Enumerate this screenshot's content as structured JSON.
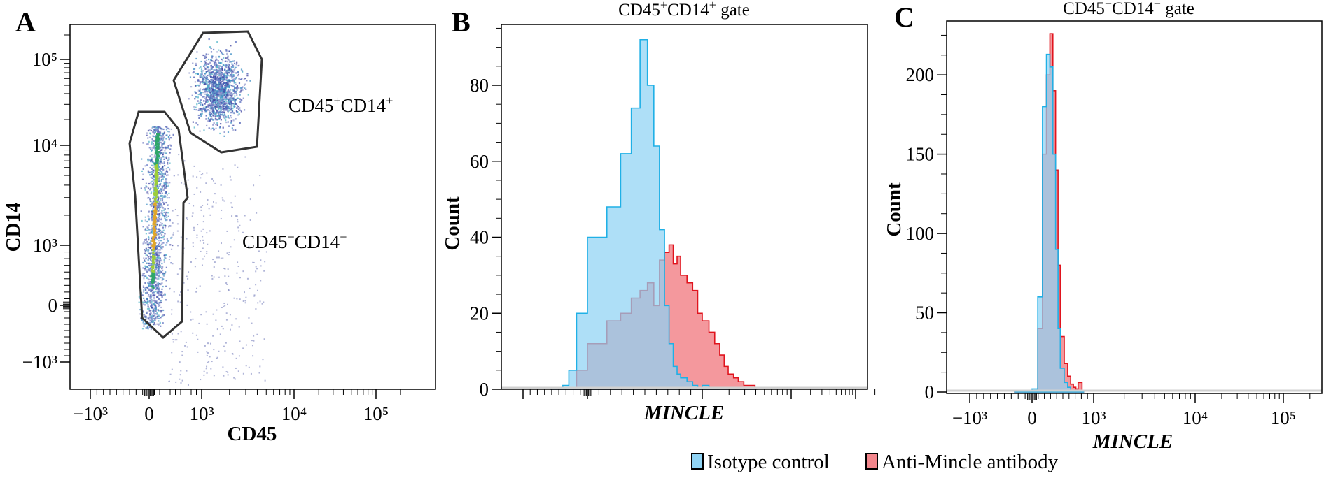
{
  "figure": {
    "panels": [
      "A",
      "B",
      "C"
    ],
    "legend": [
      {
        "label": "Isotype control",
        "color": "#8fd3f4"
      },
      {
        "label": "Anti-Mincle antibody",
        "color": "#f2868c"
      }
    ]
  },
  "chart_data": [
    {
      "panel": "A",
      "type": "scatter",
      "title": "",
      "xlabel": "CD45",
      "ylabel": "CD14",
      "x_scale": "biexponential",
      "y_scale": "biexponential",
      "xticks": [
        "−10³",
        "0",
        "10³",
        "10⁴",
        "10⁵"
      ],
      "xtick_values": [
        -1000,
        0,
        1000,
        10000,
        100000
      ],
      "yticks": [
        "−10³",
        "0",
        "10³",
        "10⁴",
        "10⁵"
      ],
      "ytick_values": [
        -1000,
        0,
        1000,
        10000,
        100000
      ],
      "gates": [
        {
          "label": "CD45⁺CD14⁺",
          "label_main": "CD45",
          "sup1": "+",
          "label_mid": "CD14",
          "sup2": "+",
          "description": "CD45 ~10^2.7–10^3.5, CD14 ~10^3.9–10^5.2"
        },
        {
          "label": "CD45⁻CD14⁻",
          "label_main": "CD45",
          "sup1": "−",
          "label_mid": "CD14",
          "sup2": "−",
          "description": "CD45 ~−300–500, CD14 ~−700–10^4.4"
        }
      ],
      "populations": [
        {
          "name": "CD45+CD14+ cluster",
          "center_cd45": 1500,
          "center_cd14": 40000
        },
        {
          "name": "CD45-CD14- cluster",
          "center_cd45": 50,
          "center_cd14": 1000
        }
      ]
    },
    {
      "panel": "B",
      "type": "area",
      "title": "CD45⁺CD14⁺ gate",
      "title_main1": "CD45",
      "title_sup1": "+",
      "title_main2": "CD14",
      "title_sup2": "+",
      "title_tail": " gate",
      "xlabel": "MINCLE",
      "ylabel": "Count",
      "ylim": [
        0,
        96
      ],
      "yticks": [
        0,
        20,
        40,
        60,
        80
      ],
      "xticks_labeled": false,
      "x": [
        -300,
        -200,
        -150,
        -100,
        -50,
        0,
        50,
        100,
        150,
        200,
        250,
        300,
        350,
        400,
        450,
        500,
        550,
        600,
        700,
        800,
        900,
        1000,
        1200,
        1400,
        1600,
        1800,
        2000,
        2300,
        2600,
        3000,
        3500,
        4000
      ],
      "series": [
        {
          "name": "Isotype control",
          "values": [
            0,
            0,
            1,
            5,
            20,
            40,
            48,
            62,
            74,
            92,
            80,
            64,
            42,
            22,
            12,
            6,
            4,
            3,
            2,
            1,
            0,
            1,
            0,
            0,
            0,
            0,
            0,
            0,
            0,
            0,
            0,
            0
          ]
        },
        {
          "name": "Anti-Mincle antibody",
          "values": [
            0,
            0,
            0,
            0,
            5,
            12,
            18,
            20,
            24,
            26,
            28,
            22,
            34,
            36,
            38,
            33,
            35,
            30,
            28,
            26,
            20,
            18,
            15,
            12,
            9,
            6,
            4,
            3,
            2,
            1,
            1,
            0
          ]
        }
      ]
    },
    {
      "panel": "C",
      "type": "area",
      "title": "CD45⁻CD14⁻ gate",
      "title_main1": "CD45",
      "title_sup1": "−",
      "title_main2": "CD14",
      "title_sup2": "−",
      "title_tail": " gate",
      "xlabel": "MINCLE",
      "ylabel": "Count",
      "ylim": [
        0,
        234
      ],
      "yticks": [
        0,
        50,
        100,
        150,
        200
      ],
      "xticks": [
        "−10³",
        "0",
        "10³",
        "10⁴",
        "10⁵"
      ],
      "xtick_values": [
        -1000,
        0,
        1000,
        10000,
        100000
      ],
      "x": [
        -100,
        -50,
        0,
        25,
        50,
        75,
        100,
        125,
        150,
        175,
        200,
        250,
        300,
        350,
        400,
        450,
        500,
        600
      ],
      "series": [
        {
          "name": "Isotype control",
          "values": [
            0,
            0,
            2,
            60,
            180,
            213,
            205,
            150,
            90,
            40,
            15,
            6,
            3,
            1,
            0,
            0,
            0,
            0
          ]
        },
        {
          "name": "Anti-Mincle antibody",
          "values": [
            0,
            0,
            1,
            40,
            150,
            200,
            226,
            190,
            140,
            80,
            35,
            18,
            10,
            5,
            3,
            2,
            6,
            0
          ]
        }
      ]
    }
  ]
}
